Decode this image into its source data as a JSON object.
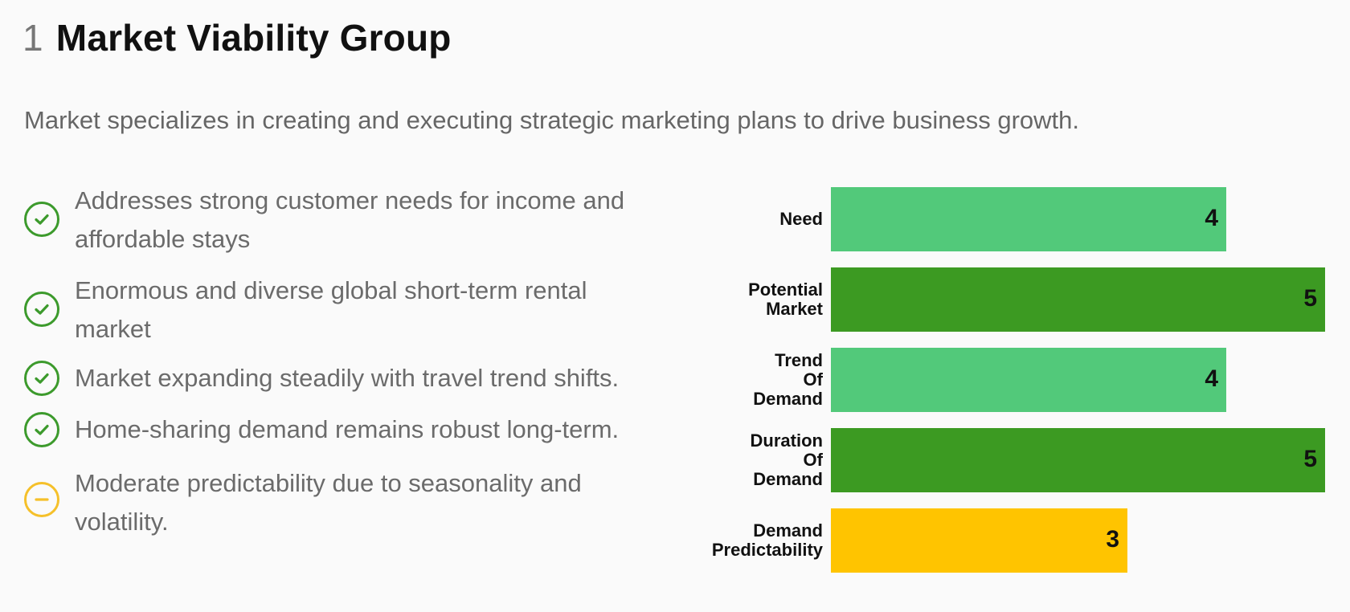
{
  "header": {
    "number": "1",
    "title": "Market Viability Group",
    "subtitle": "Market specializes in creating and executing strategic marketing plans to drive business growth."
  },
  "points": [
    {
      "icon": "check-circle-icon",
      "status": "positive",
      "text": "Addresses strong customer needs for income and affordable stays"
    },
    {
      "icon": "check-circle-icon",
      "status": "positive",
      "text": "Enormous and diverse global short-term rental market"
    },
    {
      "icon": "check-circle-icon",
      "status": "positive",
      "text": "Market expanding steadily with travel trend shifts."
    },
    {
      "icon": "check-circle-icon",
      "status": "positive",
      "text": "Home-sharing demand remains robust long-term."
    },
    {
      "icon": "minus-circle-icon",
      "status": "neutral",
      "text": "Moderate predictability due to seasonality and volatility."
    }
  ],
  "colors": {
    "positive_icon": "#3c9a2c",
    "neutral_icon": "#f5c02a",
    "score_4": "#52c97a",
    "score_5": "#3c9a22",
    "score_3": "#ffc400"
  },
  "chart_data": {
    "type": "bar",
    "orientation": "horizontal",
    "categories": [
      "Need",
      "Potential Market",
      "Trend Of Demand",
      "Duration Of Demand",
      "Demand Predictability"
    ],
    "category_lines": [
      [
        "Need"
      ],
      [
        "Potential",
        "Market"
      ],
      [
        "Trend",
        "Of",
        "Demand"
      ],
      [
        "Duration",
        "Of",
        "Demand"
      ],
      [
        "Demand",
        "Predictability"
      ]
    ],
    "values": [
      4,
      5,
      4,
      5,
      3
    ],
    "xlim": [
      0,
      5
    ],
    "data_labels": true,
    "grid": false,
    "legend": "none"
  }
}
